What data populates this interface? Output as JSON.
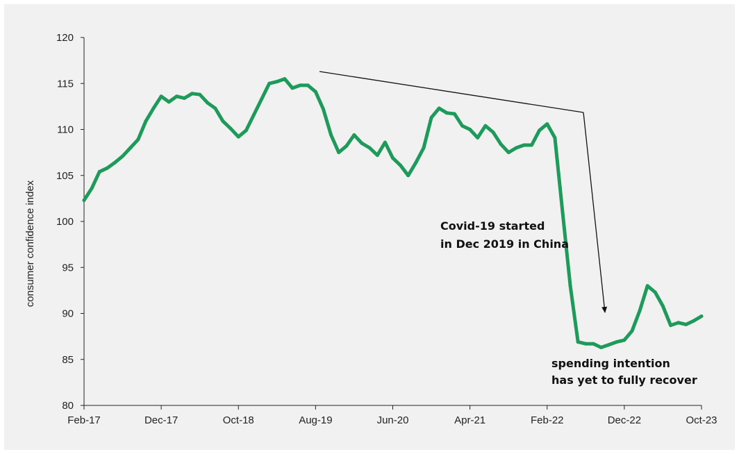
{
  "chart_data": {
    "type": "line",
    "ylabel": "consumer confidence index",
    "xlabel": "",
    "title": "",
    "ylim": [
      80,
      120
    ],
    "yticks": [
      80,
      85,
      90,
      95,
      100,
      105,
      110,
      115,
      120
    ],
    "xtick_labels": [
      "Feb-17",
      "Dec-17",
      "Oct-18",
      "Aug-19",
      "Jun-20",
      "Apr-21",
      "Feb-22",
      "Dec-22",
      "Oct-23"
    ],
    "x": [
      "Feb-17",
      "Mar-17",
      "Apr-17",
      "May-17",
      "Jun-17",
      "Jul-17",
      "Aug-17",
      "Sep-17",
      "Oct-17",
      "Nov-17",
      "Dec-17",
      "Jan-18",
      "Feb-18",
      "Mar-18",
      "Apr-18",
      "May-18",
      "Jun-18",
      "Jul-18",
      "Aug-18",
      "Sep-18",
      "Oct-18",
      "Nov-18",
      "Dec-18",
      "Jan-19",
      "Feb-19",
      "Mar-19",
      "Apr-19",
      "May-19",
      "Jun-19",
      "Jul-19",
      "Aug-19",
      "Sep-19",
      "Oct-19",
      "Nov-19",
      "Dec-19",
      "Jan-20",
      "Feb-20",
      "Mar-20",
      "Apr-20",
      "May-20",
      "Jun-20",
      "Jul-20",
      "Aug-20",
      "Sep-20",
      "Oct-20",
      "Nov-20",
      "Dec-20",
      "Jan-21",
      "Feb-21",
      "Mar-21",
      "Apr-21",
      "May-21",
      "Jun-21",
      "Jul-21",
      "Aug-21",
      "Sep-21",
      "Oct-21",
      "Nov-21",
      "Dec-21",
      "Jan-22",
      "Feb-22",
      "Mar-22",
      "Apr-22",
      "May-22",
      "Jun-22",
      "Jul-22",
      "Aug-22",
      "Sep-22",
      "Oct-22",
      "Nov-22",
      "Dec-22",
      "Jan-23",
      "Feb-23",
      "Mar-23",
      "Apr-23",
      "May-23",
      "Jun-23",
      "Jul-23",
      "Aug-23",
      "Sep-23",
      "Oct-23"
    ],
    "series": [
      {
        "values": [
          102.3,
          103.6,
          105.4,
          105.8,
          106.4,
          107.1,
          108.0,
          108.9,
          110.9,
          112.3,
          113.6,
          113.0,
          113.6,
          113.4,
          113.9,
          113.8,
          112.9,
          112.3,
          110.9,
          110.1,
          109.2,
          109.9,
          111.6,
          113.3,
          115.0,
          115.2,
          115.5,
          114.5,
          114.8,
          114.8,
          114.1,
          112.2,
          109.4,
          107.5,
          108.2,
          109.4,
          108.5,
          108.0,
          107.2,
          108.6,
          106.9,
          106.1,
          105.0,
          106.4,
          108.0,
          111.3,
          112.3,
          111.8,
          111.7,
          110.4,
          110.0,
          109.1,
          110.4,
          109.7,
          108.4,
          107.5,
          108.0,
          108.3,
          108.3,
          109.9,
          110.6,
          109.1,
          101.0,
          93.0,
          86.9,
          86.7,
          86.7,
          86.3,
          86.6,
          86.9,
          87.1,
          88.1,
          90.3,
          93.0,
          92.3,
          90.8,
          88.7,
          89.0,
          88.8,
          89.2,
          89.7
        ],
        "color": "#1e9a5a"
      }
    ],
    "annotations": [
      {
        "line1": "Covid-19 started",
        "line2": "in Dec 2019 in China"
      },
      {
        "line1": "spending intention",
        "line2": "has yet to fully recover"
      }
    ],
    "grid": false,
    "legend": "none"
  }
}
